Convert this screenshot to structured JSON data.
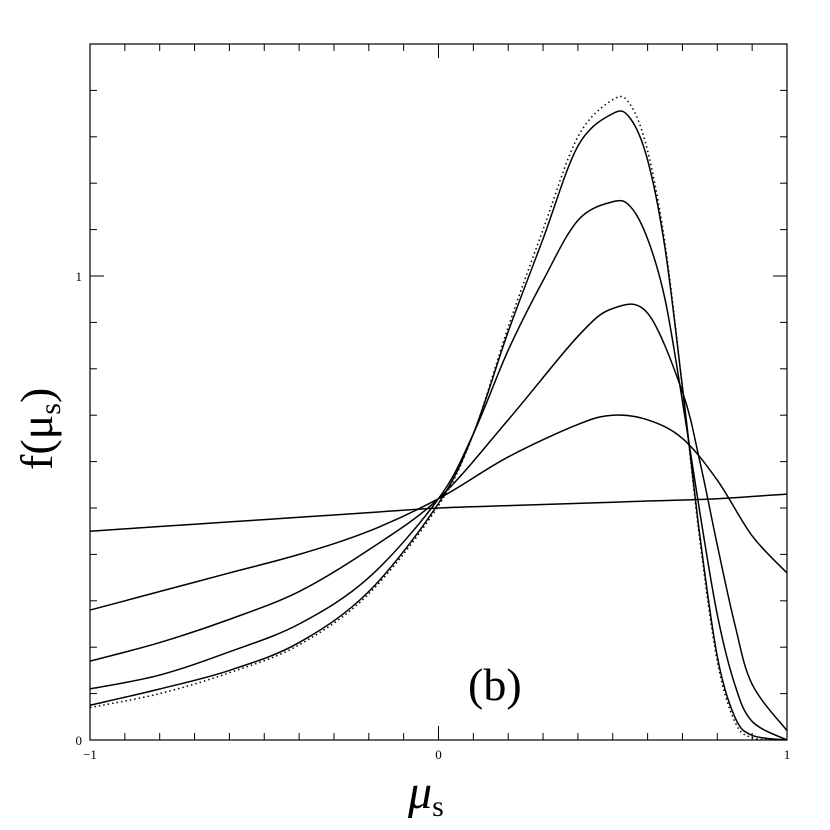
{
  "chart_data": {
    "type": "line",
    "xlabel": "μ",
    "xlabel_sub": "s",
    "ylabel": "f(μ",
    "ylabel_sub": "s",
    "ylabel_close": ")",
    "annotation": "(b)",
    "xlim": [
      -1,
      1
    ],
    "ylim": [
      0,
      1.5
    ],
    "grid": false,
    "x_ticks": [
      {
        "value": -1,
        "label": "−1"
      },
      {
        "value": 0,
        "label": "0"
      },
      {
        "value": 1,
        "label": "1"
      }
    ],
    "y_ticks": [
      {
        "value": 0,
        "label": "0"
      },
      {
        "value": 1,
        "label": "1"
      }
    ],
    "series": [
      {
        "style": "solid",
        "x": [
          -1,
          -0.8,
          -0.6,
          -0.4,
          -0.2,
          0,
          0.2,
          0.4,
          0.6,
          0.8,
          1
        ],
        "y": [
          0.45,
          0.46,
          0.47,
          0.48,
          0.49,
          0.5,
          0.505,
          0.51,
          0.515,
          0.52,
          0.53
        ]
      },
      {
        "style": "solid",
        "x": [
          -1,
          -0.8,
          -0.6,
          -0.4,
          -0.2,
          0,
          0.2,
          0.4,
          0.5,
          0.6,
          0.7,
          0.8,
          0.9,
          1
        ],
        "y": [
          0.28,
          0.32,
          0.36,
          0.4,
          0.45,
          0.52,
          0.61,
          0.68,
          0.7,
          0.69,
          0.65,
          0.56,
          0.44,
          0.36
        ]
      },
      {
        "style": "solid",
        "x": [
          -1,
          -0.8,
          -0.6,
          -0.4,
          -0.2,
          0,
          0.2,
          0.4,
          0.5,
          0.6,
          0.7,
          0.75,
          0.8,
          0.85,
          0.9,
          1
        ],
        "y": [
          0.17,
          0.21,
          0.26,
          0.32,
          0.41,
          0.52,
          0.69,
          0.87,
          0.93,
          0.92,
          0.75,
          0.6,
          0.42,
          0.25,
          0.12,
          0.02
        ]
      },
      {
        "style": "solid",
        "x": [
          -1,
          -0.8,
          -0.6,
          -0.4,
          -0.2,
          0,
          0.1,
          0.2,
          0.3,
          0.4,
          0.5,
          0.55,
          0.6,
          0.65,
          0.7,
          0.75,
          0.8,
          0.85,
          0.9,
          1
        ],
        "y": [
          0.11,
          0.14,
          0.19,
          0.25,
          0.35,
          0.52,
          0.66,
          0.84,
          0.99,
          1.12,
          1.16,
          1.15,
          1.08,
          0.95,
          0.73,
          0.49,
          0.27,
          0.12,
          0.04,
          0.0
        ]
      },
      {
        "style": "solid",
        "x": [
          -1,
          -0.8,
          -0.6,
          -0.4,
          -0.2,
          0,
          0.1,
          0.2,
          0.3,
          0.4,
          0.5,
          0.55,
          0.6,
          0.65,
          0.7,
          0.75,
          0.8,
          0.85,
          0.9,
          1
        ],
        "y": [
          0.075,
          0.11,
          0.15,
          0.21,
          0.32,
          0.51,
          0.66,
          0.88,
          1.08,
          1.28,
          1.35,
          1.34,
          1.25,
          1.06,
          0.76,
          0.44,
          0.18,
          0.05,
          0.01,
          0.0
        ]
      },
      {
        "style": "dotted",
        "x": [
          -1,
          -0.8,
          -0.6,
          -0.4,
          -0.2,
          0,
          0.1,
          0.2,
          0.3,
          0.4,
          0.5,
          0.55,
          0.6,
          0.65,
          0.7,
          0.75,
          0.8,
          0.85,
          0.9,
          1
        ],
        "y": [
          0.07,
          0.1,
          0.145,
          0.205,
          0.315,
          0.505,
          0.66,
          0.89,
          1.1,
          1.3,
          1.38,
          1.37,
          1.27,
          1.07,
          0.76,
          0.43,
          0.17,
          0.04,
          0.005,
          0.0
        ]
      }
    ]
  }
}
